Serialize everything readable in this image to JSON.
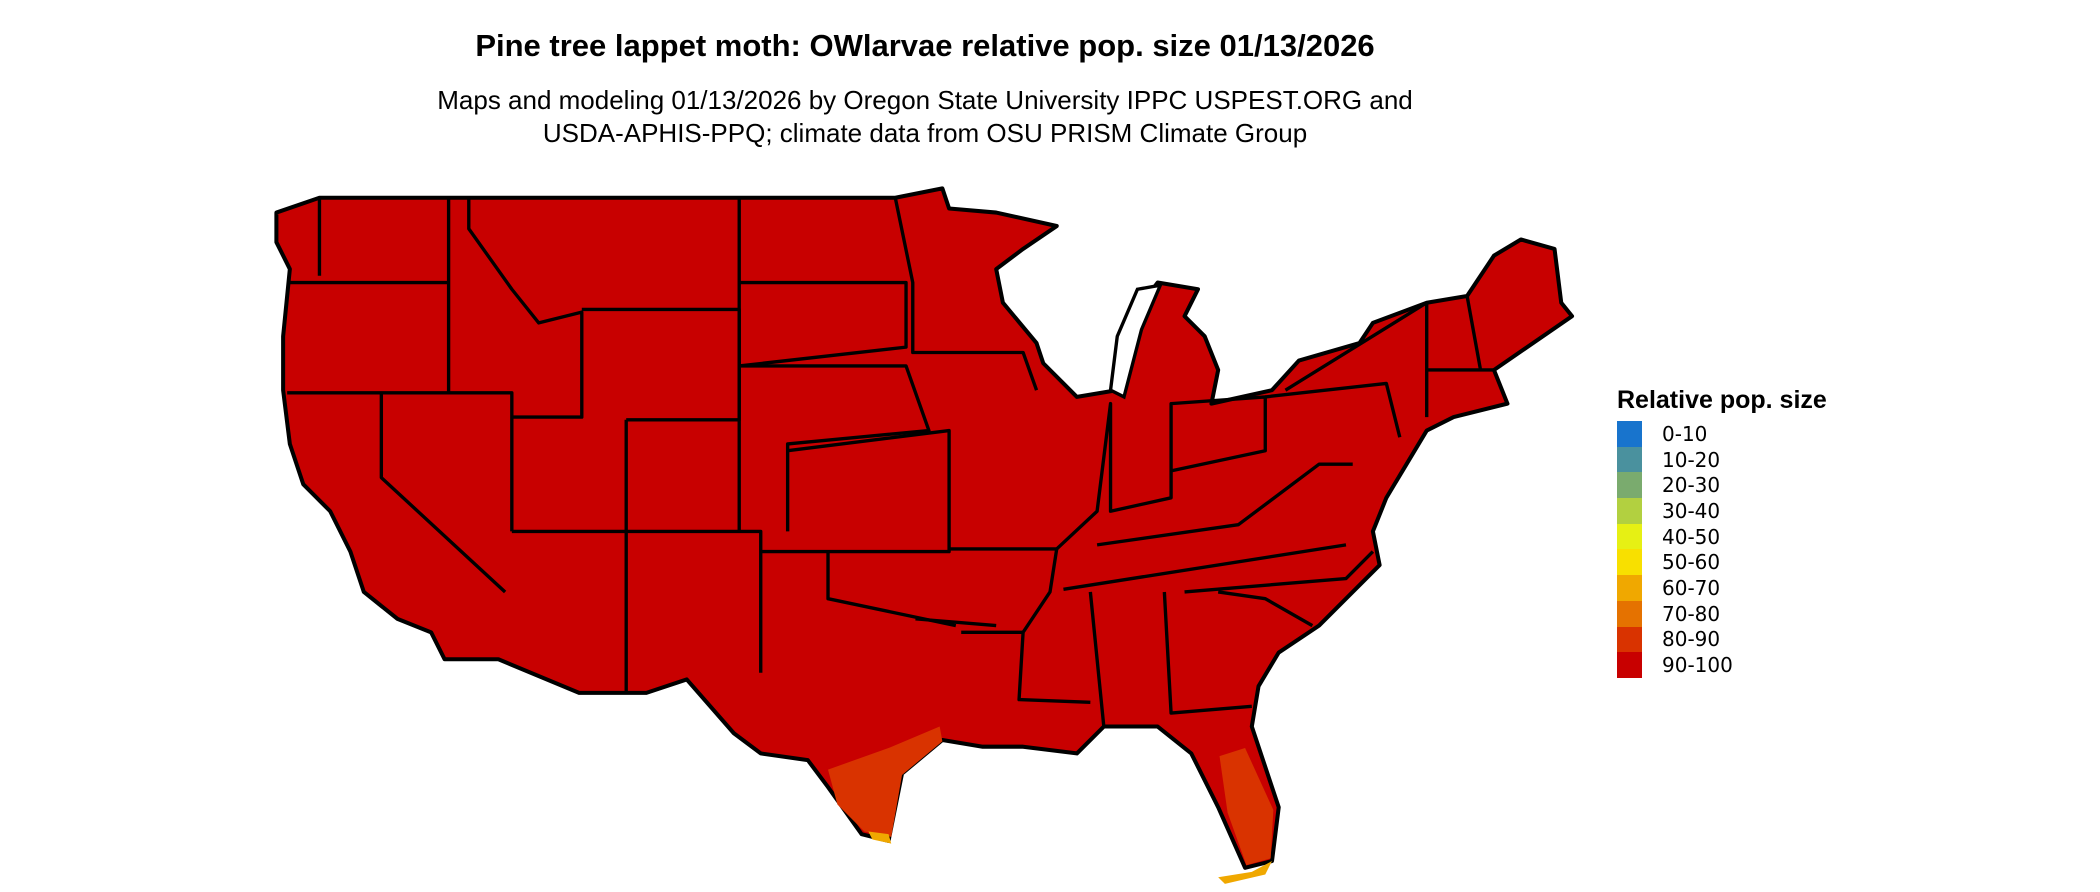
{
  "title": "Pine tree lappet moth: OWlarvae relative pop. size 01/13/2026",
  "subtitle_line1": "Maps and modeling 01/13/2026 by Oregon State University IPPC USPEST.ORG and",
  "subtitle_line2": "USDA-APHIS-PPQ; climate data from OSU PRISM Climate Group",
  "map": {
    "region": "Contiguous United States",
    "dominant_class": "90-100",
    "secondary_class_areas": [
      "South Texas: 80-90",
      "Florida peninsula: 80-90",
      "Southern tip of Texas and Florida Keys: 60-70"
    ],
    "fill_main": "#c80000",
    "fill_secondary": "#d93300",
    "fill_tertiary": "#f0a800",
    "border_color": "#000000"
  },
  "legend": {
    "title": "Relative pop. size",
    "position": "right",
    "items": [
      {
        "label": "0-10",
        "color": "#1874cd"
      },
      {
        "label": "10-20",
        "color": "#4a919e"
      },
      {
        "label": "20-30",
        "color": "#7aab6e"
      },
      {
        "label": "30-40",
        "color": "#b2d040"
      },
      {
        "label": "40-50",
        "color": "#e6f014"
      },
      {
        "label": "50-60",
        "color": "#f8e000"
      },
      {
        "label": "60-70",
        "color": "#f0a800"
      },
      {
        "label": "70-80",
        "color": "#e57200"
      },
      {
        "label": "80-90",
        "color": "#d93300"
      },
      {
        "label": "90-100",
        "color": "#c80000"
      }
    ]
  }
}
